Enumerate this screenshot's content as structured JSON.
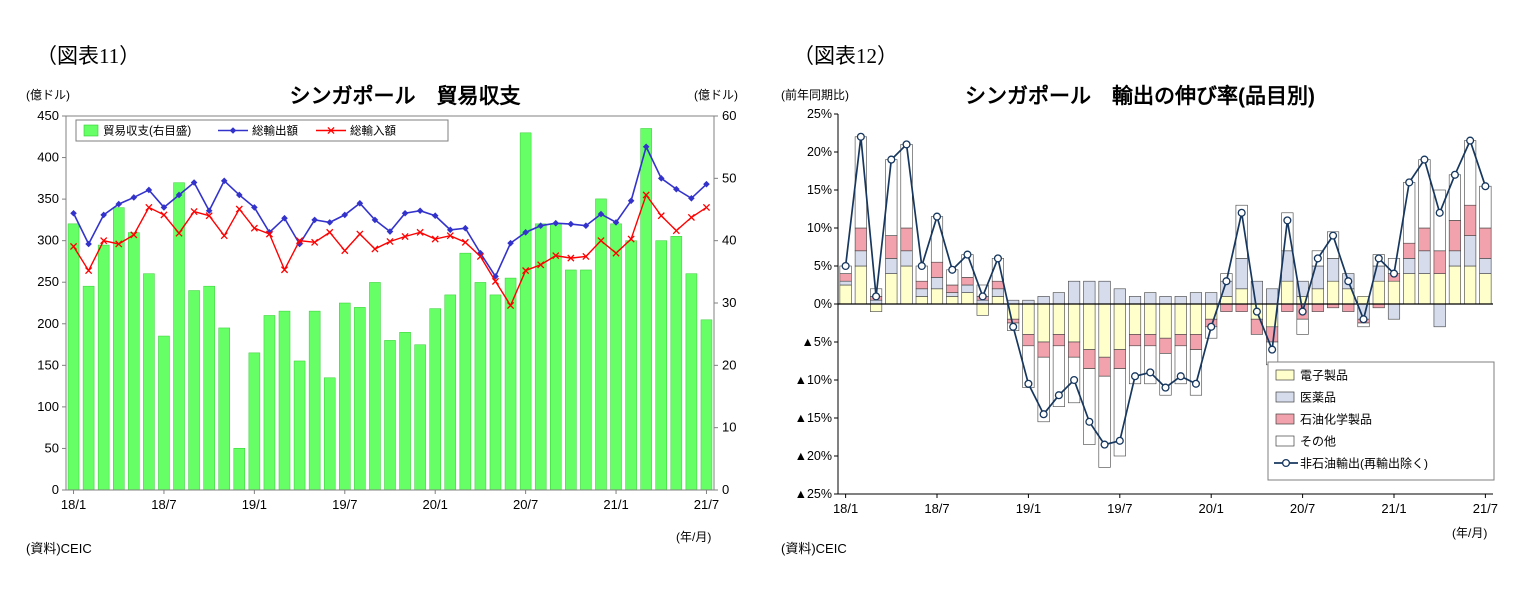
{
  "page": {
    "background": "#ffffff"
  },
  "chart_data": [
    {
      "type": "bar",
      "subtype": "bar+line-dual-axis",
      "fig_label": "（図表11）",
      "title": "シンガポール　貿易収支",
      "left_axis_unit": "(億ドル)",
      "right_axis_unit": "(億ドル)",
      "x_unit": "(年/月)",
      "source": "(資料)CEIC",
      "left_ylim": [
        0,
        450
      ],
      "left_yticks": [
        0,
        50,
        100,
        150,
        200,
        250,
        300,
        350,
        400,
        450
      ],
      "right_ylim": [
        0,
        60
      ],
      "right_yticks": [
        0,
        10,
        20,
        30,
        40,
        50,
        60
      ],
      "x_tick_labels": [
        "18/1",
        "18/7",
        "19/1",
        "19/7",
        "20/1",
        "20/7",
        "21/1",
        "21/7"
      ],
      "x_tick_indices": [
        0,
        6,
        12,
        18,
        24,
        30,
        36,
        42
      ],
      "months": [
        "18/1",
        "18/2",
        "18/3",
        "18/4",
        "18/5",
        "18/6",
        "18/7",
        "18/8",
        "18/9",
        "18/10",
        "18/11",
        "18/12",
        "19/1",
        "19/2",
        "19/3",
        "19/4",
        "19/5",
        "19/6",
        "19/7",
        "19/8",
        "19/9",
        "19/10",
        "19/11",
        "19/12",
        "20/1",
        "20/2",
        "20/3",
        "20/4",
        "20/5",
        "20/6",
        "20/7",
        "20/8",
        "20/9",
        "20/10",
        "20/11",
        "20/12",
        "21/1",
        "21/2",
        "21/3",
        "21/4",
        "21/5",
        "21/6",
        "21/7"
      ],
      "series": [
        {
          "name": "貿易収支(右目盛)",
          "type": "bar",
          "axis": "right",
          "color": "#66ff66",
          "border_color": "#33cc33",
          "values": [
            42.7,
            32.7,
            39.3,
            45.3,
            41.3,
            34.7,
            24.7,
            49.3,
            32.0,
            32.7,
            26.0,
            6.7,
            22.0,
            28.0,
            28.7,
            20.7,
            28.7,
            18.0,
            30.0,
            29.3,
            33.3,
            24.0,
            25.3,
            23.3,
            29.1,
            31.3,
            38.0,
            33.3,
            31.3,
            34.0,
            57.3,
            42.7,
            42.7,
            35.3,
            35.3,
            46.7,
            42.7,
            40.0,
            58.0,
            40.0,
            40.7,
            34.7,
            27.3
          ]
        },
        {
          "name": "総輸出額",
          "type": "line",
          "axis": "left",
          "color": "#3333cc",
          "marker": "diamond",
          "values": [
            333,
            296,
            331,
            344,
            352,
            361,
            340,
            355,
            370,
            336,
            372,
            355,
            340,
            310,
            327,
            296,
            325,
            322,
            331,
            345,
            325,
            311,
            333,
            336,
            330,
            313,
            315,
            285,
            257,
            297,
            310,
            318,
            321,
            320,
            318,
            332,
            322,
            348,
            413,
            375,
            362,
            351,
            368
          ]
        },
        {
          "name": "総輸入額",
          "type": "line",
          "axis": "left",
          "color": "#ff0000",
          "marker": "x",
          "values": [
            293,
            264,
            300,
            296,
            307,
            340,
            331,
            309,
            335,
            330,
            306,
            338,
            315,
            308,
            265,
            300,
            298,
            310,
            288,
            308,
            290,
            299,
            305,
            310,
            302,
            306,
            298,
            281,
            251,
            222,
            264,
            271,
            282,
            279,
            281,
            300,
            285,
            302,
            355,
            330,
            312,
            328,
            340
          ]
        }
      ]
    },
    {
      "type": "bar",
      "subtype": "stacked-bar+line",
      "fig_label": "（図表12）",
      "title": "シンガポール　輸出の伸び率(品目別)",
      "y_axis_unit": "(前年同期比)",
      "x_unit": "(年/月)",
      "source": "(資料)CEIC",
      "ylim": [
        -25,
        25
      ],
      "ytick_values": [
        25,
        20,
        15,
        10,
        5,
        0,
        -5,
        -10,
        -15,
        -20,
        -25
      ],
      "ytick_labels": [
        "25%",
        "20%",
        "15%",
        "10%",
        "5%",
        "0%",
        "▲5%",
        "▲10%",
        "▲15%",
        "▲20%",
        "▲25%"
      ],
      "x_tick_labels": [
        "18/1",
        "18/7",
        "19/1",
        "19/7",
        "20/1",
        "20/7",
        "21/1",
        "21/7"
      ],
      "x_tick_indices": [
        0,
        6,
        12,
        18,
        24,
        30,
        36,
        42
      ],
      "months": [
        "18/1",
        "18/2",
        "18/3",
        "18/4",
        "18/5",
        "18/6",
        "18/7",
        "18/8",
        "18/9",
        "18/10",
        "18/11",
        "18/12",
        "19/1",
        "19/2",
        "19/3",
        "19/4",
        "19/5",
        "19/6",
        "19/7",
        "19/8",
        "19/9",
        "19/10",
        "19/11",
        "19/12",
        "20/1",
        "20/2",
        "20/3",
        "20/4",
        "20/5",
        "20/6",
        "20/7",
        "20/8",
        "20/9",
        "20/10",
        "20/11",
        "20/12",
        "21/1",
        "21/2",
        "21/3",
        "21/4",
        "21/5",
        "21/6",
        "21/7"
      ],
      "series": [
        {
          "name": "電子製品",
          "color": "#ffffcc",
          "values": [
            2.5,
            5,
            -1,
            4,
            5,
            1,
            2,
            1,
            1.5,
            -1.5,
            1,
            -2,
            -4,
            -5,
            -4,
            -5,
            -6,
            -7,
            -6,
            -4,
            -4,
            -4.5,
            -4,
            -4,
            -2,
            1,
            2,
            -2,
            -3,
            3,
            1,
            2,
            3,
            2,
            1,
            3,
            3,
            4,
            4,
            4,
            5,
            5,
            4
          ]
        },
        {
          "name": "医薬品",
          "color": "#d6dcec",
          "values": [
            0.5,
            2,
            0.5,
            2,
            2,
            1,
            1.5,
            0.5,
            1,
            0.5,
            1,
            0.5,
            0.5,
            1,
            1.5,
            3,
            3,
            3,
            2,
            1,
            1.5,
            1,
            1,
            1.5,
            1.5,
            2,
            4,
            3,
            2,
            4,
            2,
            3,
            3,
            2,
            -2,
            2,
            -2,
            2,
            3,
            -3,
            2,
            4,
            2
          ]
        },
        {
          "name": "石油化学製品",
          "color": "#f2a2ac",
          "values": [
            1,
            3,
            0.5,
            3,
            3,
            1,
            2,
            1,
            1,
            0.5,
            1,
            -0.5,
            -1.5,
            -2,
            -1.5,
            -2,
            -2.5,
            -2.5,
            -2.5,
            -1.5,
            -1.5,
            -2,
            -1.5,
            -2,
            -1,
            -1,
            -1,
            -2,
            -2,
            -1,
            -2,
            -1,
            -0.5,
            -1,
            -0.5,
            -0.5,
            1,
            2,
            3,
            3,
            4,
            4,
            4
          ]
        },
        {
          "name": "その他",
          "color": "#ffffff",
          "values": [
            1,
            12,
            1,
            10,
            11,
            2,
            6,
            2,
            3,
            1.5,
            3,
            -1,
            -5.5,
            -8.5,
            -8,
            -6,
            -10,
            -12,
            -11.5,
            -5,
            -5,
            -5.5,
            -5,
            -6,
            -1.5,
            1,
            7,
            0,
            -3,
            5,
            -2,
            2,
            3.5,
            0,
            -0.5,
            1.5,
            2,
            8,
            9,
            8,
            6,
            8.5,
            5.5
          ]
        }
      ],
      "line_series": {
        "name": "非石油輸出(再輸出除く)",
        "color": "#17375e",
        "marker": "open-circle",
        "values": [
          5,
          22,
          1,
          19,
          21,
          5,
          11.5,
          4.5,
          6.5,
          1,
          6,
          -3,
          -10.5,
          -14.5,
          -12,
          -10,
          -15.5,
          -18.5,
          -18,
          -9.5,
          -9,
          -11,
          -9.5,
          -10.5,
          -3,
          3,
          12,
          -1,
          -6,
          11,
          -1,
          6,
          9,
          3,
          -2,
          6,
          4,
          16,
          19,
          12,
          17,
          21.5,
          15.5
        ]
      }
    }
  ]
}
